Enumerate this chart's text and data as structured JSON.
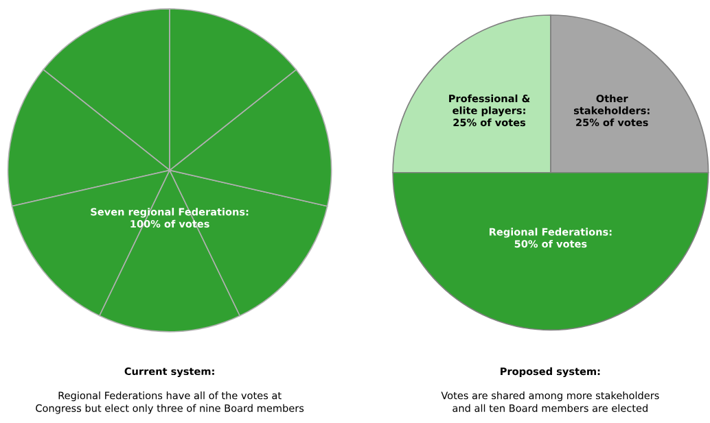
{
  "chart_data": [
    {
      "type": "pie",
      "title": "Current system:",
      "subtitle": "Regional Federations have all of the votes at\nCongress but elect only three of nine Board members",
      "categories": [
        null,
        null,
        null,
        null,
        null,
        null,
        null
      ],
      "values": [
        14.29,
        14.29,
        14.29,
        14.29,
        14.29,
        14.29,
        14.29
      ],
      "colors": [
        "#31a031",
        "#31a031",
        "#31a031",
        "#31a031",
        "#31a031",
        "#31a031",
        "#31a031"
      ],
      "annotations": [
        "Seven regional Federations:\n100% of votes"
      ]
    },
    {
      "type": "pie",
      "title": "Proposed system:",
      "subtitle": "Votes are shared among more stakeholders\nand all ten Board members are elected",
      "categories": [
        "Other\nstakeholders:\n25% of votes",
        "Professional &\nelite players:\n25% of votes",
        "Regional Federations:\n50% of votes"
      ],
      "values": [
        25,
        25,
        50
      ],
      "colors": [
        "#a6a6a6",
        "#b3e6b3",
        "#31a031"
      ]
    }
  ]
}
